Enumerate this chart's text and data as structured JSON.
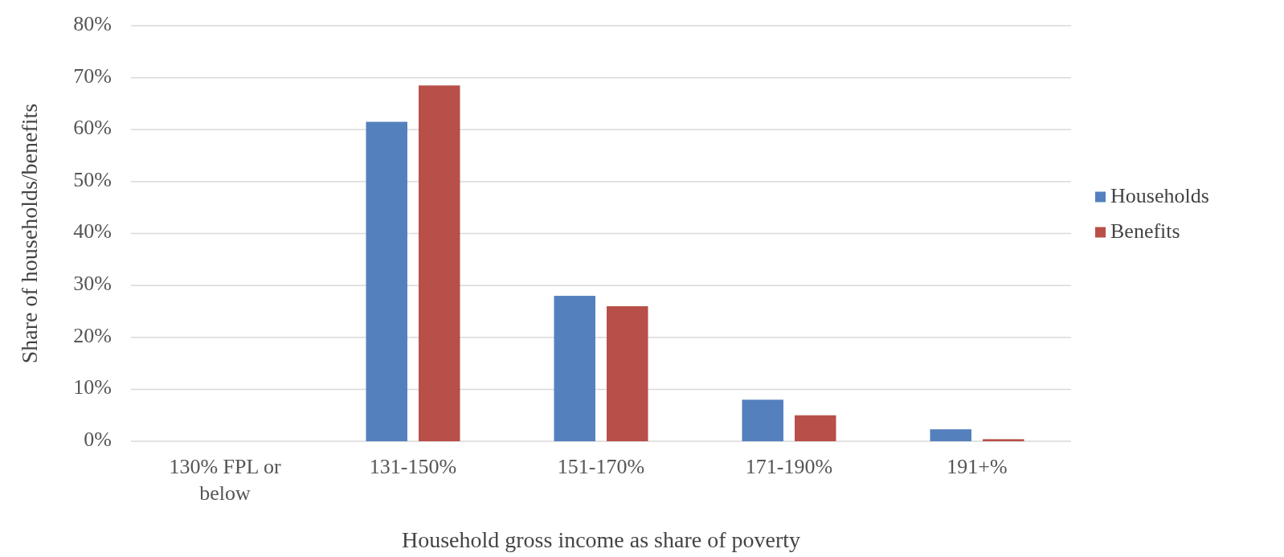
{
  "chart_data": {
    "type": "bar",
    "xlabel": "Household gross income as share of poverty",
    "ylabel": "Share of households/benefits",
    "categories": [
      "130% FPL or below",
      "131-150%",
      "151-170%",
      "171-190%",
      "191+%"
    ],
    "series": [
      {
        "name": "Households",
        "color": "#5480be",
        "values": [
          0,
          61.5,
          28,
          8,
          2.3
        ]
      },
      {
        "name": "Benefits",
        "color": "#b84f48",
        "values": [
          0,
          68.5,
          26,
          5,
          0.4
        ]
      }
    ],
    "ylim": [
      0,
      80
    ],
    "yticks": [
      {
        "value": 0,
        "label": "0%"
      },
      {
        "value": 10,
        "label": "10%"
      },
      {
        "value": 20,
        "label": "20%"
      },
      {
        "value": 30,
        "label": "30%"
      },
      {
        "value": 40,
        "label": "40%"
      },
      {
        "value": 50,
        "label": "50%"
      },
      {
        "value": 60,
        "label": "60%"
      },
      {
        "value": 70,
        "label": "70%"
      },
      {
        "value": 80,
        "label": "80%"
      }
    ],
    "grid": "y",
    "legend": "right"
  }
}
